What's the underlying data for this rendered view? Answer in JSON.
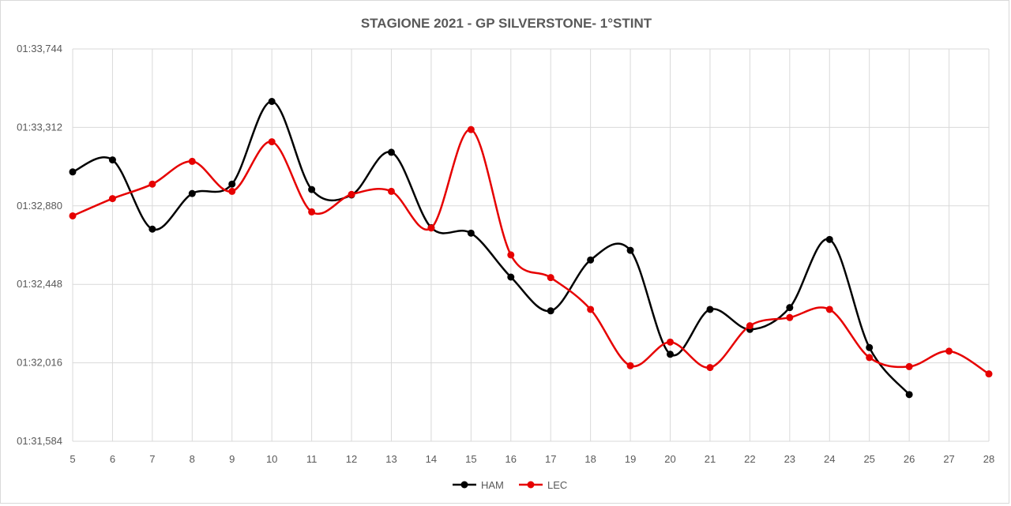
{
  "chart_data": {
    "type": "line",
    "title": "STAGIONE 2021 - GP SILVERSTONE- 1°STINT",
    "xlabel": "",
    "ylabel": "",
    "x": [
      5,
      6,
      7,
      8,
      9,
      10,
      11,
      12,
      13,
      14,
      15,
      16,
      17,
      18,
      19,
      20,
      21,
      22,
      23,
      24,
      25,
      26,
      27,
      28
    ],
    "y_ticks": [
      "01:31,584",
      "01:32,016",
      "01:32,448",
      "01:32,880",
      "01:33,312",
      "01:33,744"
    ],
    "y_tick_values": [
      91.584,
      92.016,
      92.448,
      92.88,
      93.312,
      93.744
    ],
    "ylim": [
      91.584,
      93.744
    ],
    "grid": true,
    "smooth": true,
    "legend_position": "bottom",
    "series": [
      {
        "name": "HAM",
        "color": "#000000",
        "values": [
          93.067,
          93.133,
          92.752,
          92.948,
          93.0,
          93.455,
          92.97,
          92.94,
          93.175,
          92.76,
          92.73,
          92.488,
          92.302,
          92.582,
          92.635,
          92.063,
          92.31,
          92.2,
          92.32,
          92.695,
          92.1,
          91.841,
          null,
          null
        ]
      },
      {
        "name": "LEC",
        "color": "#e60000",
        "values": [
          92.825,
          92.92,
          93.0,
          93.125,
          92.96,
          93.233,
          92.847,
          92.943,
          92.96,
          92.758,
          93.3,
          92.61,
          92.485,
          92.31,
          92.0,
          92.13,
          91.99,
          92.22,
          92.265,
          92.31,
          92.045,
          91.995,
          92.08,
          91.955
        ]
      }
    ]
  }
}
